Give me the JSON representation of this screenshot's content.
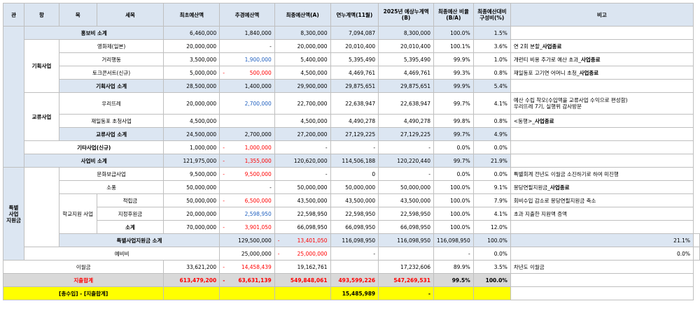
{
  "headers": {
    "gwan": "관",
    "hang": "항",
    "mok": "목",
    "semok": "세목",
    "initial": "최초예산액",
    "supp": "추경예산액",
    "final": "최종예산액(A)",
    "settle": "연누계액(11월)",
    "expected": "2025년 예상누계액(B)",
    "ratio": "최종예산 비율(B/A)",
    "share": "최종예산대비 구성비(%)",
    "remark": "비고"
  },
  "groups": {
    "gwan_special": "특별 사업 지원금",
    "hang_planning": "기획사업",
    "hang_exchange": "교류사업",
    "mok_school": "학교지원 사업"
  },
  "rows": {
    "promo": {
      "label": "홍보비 소계",
      "initial": "6,460,000",
      "supp": "1,840,000",
      "final": "8,300,000",
      "settle": "7,094,087",
      "expected": "8,300,000",
      "ratio": "100.0%",
      "share": "1.5%",
      "remark": ""
    },
    "film": {
      "label": "영화제(일본)",
      "initial": "20,000,000",
      "supp": "-",
      "final": "20,000,000",
      "settle": "20,010,400",
      "expected": "20,010,400",
      "ratio": "100.1%",
      "share": "3.6%",
      "remark": "연 2회 분할_",
      "remark_b": "사업종료"
    },
    "street": {
      "label": "거리행동",
      "initial": "3,500,000",
      "supp": "1,900,000",
      "final": "5,400,000",
      "settle": "5,395,490",
      "expected": "5,395,490",
      "ratio": "99.9%",
      "share": "1.0%",
      "remark": "개런티 비용 추가로 예산 초과_",
      "remark_b": "사업종료"
    },
    "talk": {
      "label": "토크콘서트(신규)",
      "initial": "5,000,000",
      "supp": "500,000",
      "final": "4,500,000",
      "settle": "4,469,761",
      "expected": "4,469,761",
      "ratio": "99.3%",
      "share": "0.8%",
      "remark": "재일동포 고기연  어머니 초청_",
      "remark_b": "사업종료"
    },
    "planning_sub": {
      "label": "기획사업 소계",
      "initial": "28,500,000",
      "supp": "1,400,000",
      "final": "29,900,000",
      "settle": "29,875,651",
      "expected": "29,875,651",
      "ratio": "99.9%",
      "share": "5.4%",
      "remark": ""
    },
    "woori": {
      "label": "우리뜨레",
      "initial": "20,000,000",
      "supp": "2,700,000",
      "final": "22,700,000",
      "settle": "22,638,947",
      "expected": "22,638,947",
      "ratio": "99.7%",
      "share": "4.1%",
      "remark": "예산 수립 착오(수입액을 교류사업 수익으로 편성함)",
      "remark2": "우리뜨레 7기, 실행위 감사방문"
    },
    "zainichi": {
      "label": "재일동포 초청사업",
      "initial": "4,500,000",
      "supp": "",
      "final": "4,500,000",
      "settle": "4,490,278",
      "expected": "4,490,278",
      "ratio": "99.8%",
      "share": "0.8%",
      "remark": "<동행>_",
      "remark_b": "사업종료"
    },
    "exchange_sub": {
      "label": "교류사업 소계",
      "initial": "24,500,000",
      "supp": "2,700,000",
      "final": "27,200,000",
      "settle": "27,129,225",
      "expected": "27,129,225",
      "ratio": "99.7%",
      "share": "4.9%",
      "remark": ""
    },
    "other": {
      "label": "기타사업(신규)",
      "initial": "1,000,000",
      "supp": "1,000,000",
      "final": "-",
      "settle": "-",
      "expected": "-",
      "ratio": "0.0%",
      "share": "0.0%",
      "remark": ""
    },
    "project_sub": {
      "label": "사업비 소계",
      "initial": "121,975,000",
      "supp": "1,355,000",
      "final": "120,620,000",
      "settle": "114,506,188",
      "expected": "120,220,440",
      "ratio": "99.7%",
      "share": "21.9%",
      "remark": ""
    },
    "culture": {
      "label": "문화보급사업",
      "initial": "9,500,000",
      "supp": "9,500,000",
      "final": "-",
      "settle": "0",
      "expected": "-",
      "ratio": "0.0%",
      "share": "0.0%",
      "remark": "특별회계 전년도 이월금 소진하기로 하여 미진행"
    },
    "sopung": {
      "label": "소풍",
      "initial": "50,000,000",
      "supp": "-",
      "final": "50,000,000",
      "settle": "50,000,000",
      "expected": "50,000,000",
      "ratio": "100.0%",
      "share": "9.1%",
      "remark": "몽당연필지원금_",
      "remark_b": "사업종료"
    },
    "reserve_fund": {
      "label": "적립금",
      "initial": "50,000,000",
      "supp": "6,500,000",
      "final": "43,500,000",
      "settle": "43,500,000",
      "expected": "43,500,000",
      "ratio": "100.0%",
      "share": "7.9%",
      "remark": "회비수입 감소로 몽당연필지원금 축소"
    },
    "designated": {
      "label": "지정후원금",
      "initial": "20,000,000",
      "supp": "2,598,950",
      "final": "22,598,950",
      "settle": "22,598,950",
      "expected": "22,598,950",
      "ratio": "100.0%",
      "share": "4.1%",
      "remark": "초과 지출한 지원액 증액"
    },
    "school_sub": {
      "label": "소계",
      "initial": "70,000,000",
      "supp": "3,901,050",
      "final": "66,098,950",
      "settle": "66,098,950",
      "expected": "66,098,950",
      "ratio": "100.0%",
      "share": "12.0%",
      "remark": ""
    },
    "special_sub": {
      "label": "특별사업지원금 소계",
      "initial": "129,500,000",
      "supp": "13,401,050",
      "final": "116,098,950",
      "settle": "116,098,950",
      "expected": "116,098,950",
      "ratio": "100.0%",
      "share": "21.1%",
      "remark": ""
    },
    "contingency": {
      "label": "예비비",
      "initial": "25,000,000",
      "supp": "25,000,000",
      "final": "-",
      "settle": "",
      "expected": "-",
      "ratio": "0.0%",
      "share": "0.0%",
      "remark": ""
    },
    "carryover": {
      "label": "이월금",
      "initial": "33,621,200",
      "supp": "14,458,439",
      "final": "19,162,761",
      "settle": "",
      "expected": "17,232,606",
      "ratio": "89.9%",
      "share": "3.5%",
      "remark": "차년도 이월금"
    },
    "total": {
      "label": "지출합계",
      "initial": "613,479,200",
      "supp": "63,631,139",
      "final": "549,848,061",
      "settle": "493,599,226",
      "expected": "547,269,531",
      "ratio": "99.5%",
      "share": "100.0%",
      "remark": ""
    },
    "balance": {
      "label": "[총수입] - [지출합계]",
      "settle": "15,485,989",
      "expected": "-"
    }
  },
  "minus_sign": "-",
  "colors": {
    "header_bg": "#dbe5f1",
    "subtotal_bg": "#dce6f2",
    "negative": "#ff0000",
    "positive_change": "#1f5fbf",
    "total_bg": "#d9d9d9",
    "balance_bg": "#ffff00"
  }
}
